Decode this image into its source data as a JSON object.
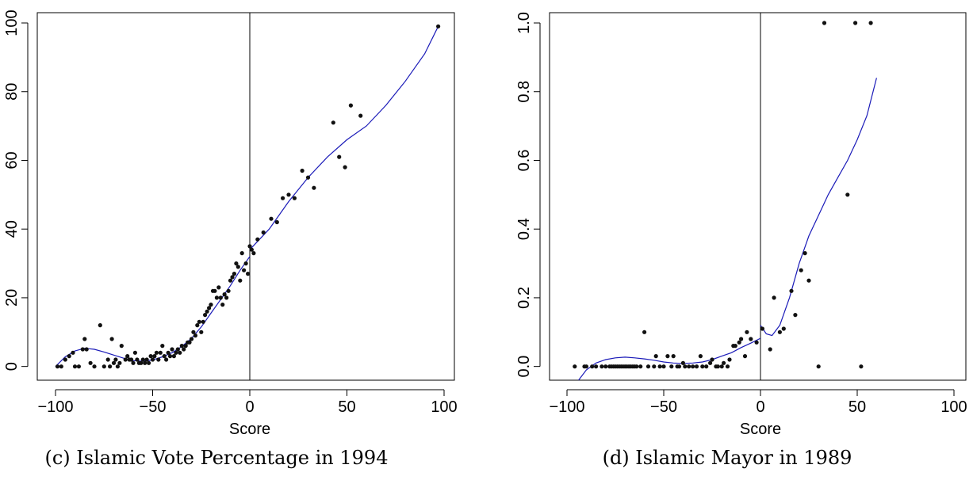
{
  "chart_data": [
    {
      "type": "scatter",
      "caption": "(c) Islamic Vote Percentage in 1994",
      "xlabel": "Score",
      "ylabel": "",
      "xlim": [
        -100,
        100
      ],
      "ylim": [
        -4,
        103
      ],
      "xticks": [
        "-100",
        "-50",
        "0",
        "50",
        "100"
      ],
      "yticks": [
        "0",
        "20",
        "40",
        "60",
        "80",
        "100"
      ],
      "cutoff": 0,
      "grid": false,
      "points": [
        [
          -99,
          0
        ],
        [
          -97,
          0
        ],
        [
          -95,
          2
        ],
        [
          -93,
          3
        ],
        [
          -91,
          4
        ],
        [
          -90,
          0
        ],
        [
          -88,
          0
        ],
        [
          -86,
          5
        ],
        [
          -85,
          8
        ],
        [
          -84,
          5
        ],
        [
          -82,
          1
        ],
        [
          -80,
          0
        ],
        [
          -77,
          12
        ],
        [
          -75,
          0
        ],
        [
          -73,
          2
        ],
        [
          -72,
          0
        ],
        [
          -71,
          8
        ],
        [
          -70,
          1
        ],
        [
          -69,
          2
        ],
        [
          -68,
          0
        ],
        [
          -67,
          1
        ],
        [
          -66,
          6
        ],
        [
          -64,
          2
        ],
        [
          -63,
          3
        ],
        [
          -62,
          2
        ],
        [
          -61,
          2
        ],
        [
          -60,
          1
        ],
        [
          -59,
          4
        ],
        [
          -58,
          2
        ],
        [
          -57,
          1
        ],
        [
          -56,
          1
        ],
        [
          -55,
          2
        ],
        [
          -54,
          1
        ],
        [
          -53,
          2
        ],
        [
          -52,
          1
        ],
        [
          -51,
          3
        ],
        [
          -50,
          2
        ],
        [
          -49,
          3
        ],
        [
          -48,
          4
        ],
        [
          -47,
          2
        ],
        [
          -46,
          4
        ],
        [
          -45,
          6
        ],
        [
          -44,
          3
        ],
        [
          -43,
          2
        ],
        [
          -42,
          4
        ],
        [
          -41,
          3
        ],
        [
          -40,
          5
        ],
        [
          -39,
          3
        ],
        [
          -38,
          4
        ],
        [
          -37,
          5
        ],
        [
          -36,
          4
        ],
        [
          -35,
          6
        ],
        [
          -34,
          5
        ],
        [
          -33,
          6
        ],
        [
          -32,
          7
        ],
        [
          -31,
          7
        ],
        [
          -30,
          8
        ],
        [
          -29,
          10
        ],
        [
          -28,
          9
        ],
        [
          -27,
          12
        ],
        [
          -26,
          13
        ],
        [
          -25,
          10
        ],
        [
          -24,
          13
        ],
        [
          -23,
          15
        ],
        [
          -22,
          16
        ],
        [
          -21,
          17
        ],
        [
          -20,
          18
        ],
        [
          -19,
          22
        ],
        [
          -18,
          22
        ],
        [
          -17,
          20
        ],
        [
          -16,
          23
        ],
        [
          -15,
          20
        ],
        [
          -14,
          18
        ],
        [
          -13,
          21
        ],
        [
          -12,
          20
        ],
        [
          -11,
          22
        ],
        [
          -10,
          25
        ],
        [
          -9,
          26
        ],
        [
          -8,
          27
        ],
        [
          -7,
          30
        ],
        [
          -6,
          29
        ],
        [
          -5,
          25
        ],
        [
          -4,
          33
        ],
        [
          -3,
          28
        ],
        [
          -2,
          30
        ],
        [
          -1,
          27
        ],
        [
          0,
          35
        ],
        [
          1,
          34
        ],
        [
          2,
          33
        ],
        [
          4,
          37
        ],
        [
          7,
          39
        ],
        [
          11,
          43
        ],
        [
          14,
          42
        ],
        [
          17,
          49
        ],
        [
          20,
          50
        ],
        [
          23,
          49
        ],
        [
          27,
          57
        ],
        [
          30,
          55
        ],
        [
          33,
          52
        ],
        [
          43,
          71
        ],
        [
          46,
          61
        ],
        [
          49,
          58
        ],
        [
          52,
          76
        ],
        [
          57,
          73
        ],
        [
          97,
          99
        ]
      ],
      "fit_left": [
        [
          -100,
          0
        ],
        [
          -95,
          2.8
        ],
        [
          -90,
          4.5
        ],
        [
          -85,
          5.3
        ],
        [
          -80,
          5.0
        ],
        [
          -75,
          4.2
        ],
        [
          -70,
          3.3
        ],
        [
          -65,
          2.4
        ],
        [
          -60,
          1.7
        ],
        [
          -55,
          1.5
        ],
        [
          -50,
          1.9
        ],
        [
          -45,
          2.8
        ],
        [
          -40,
          4.0
        ],
        [
          -35,
          5.8
        ],
        [
          -30,
          8.2
        ],
        [
          -25,
          11.5
        ],
        [
          -20,
          15.5
        ],
        [
          -15,
          19.5
        ],
        [
          -10,
          23.5
        ],
        [
          -5,
          28
        ],
        [
          0,
          32
        ]
      ],
      "fit_right": [
        [
          0,
          34
        ],
        [
          10,
          40
        ],
        [
          20,
          48
        ],
        [
          30,
          55
        ],
        [
          40,
          61
        ],
        [
          50,
          66
        ],
        [
          60,
          70
        ],
        [
          70,
          76
        ],
        [
          80,
          83
        ],
        [
          90,
          91
        ],
        [
          97,
          99
        ]
      ]
    },
    {
      "type": "scatter",
      "caption": "(d) Islamic Mayor in 1989",
      "xlabel": "Score",
      "ylabel": "",
      "xlim": [
        -100,
        100
      ],
      "ylim": [
        -0.04,
        1.03
      ],
      "xticks": [
        "-100",
        "-50",
        "0",
        "50",
        "100"
      ],
      "yticks": [
        "0.0",
        "0.2",
        "0.4",
        "0.6",
        "0.8",
        "1.0"
      ],
      "cutoff": 0,
      "grid": false,
      "points": [
        [
          -96,
          0
        ],
        [
          -91,
          0
        ],
        [
          -90,
          0
        ],
        [
          -87,
          0
        ],
        [
          -85,
          0
        ],
        [
          -82,
          0
        ],
        [
          -80,
          0
        ],
        [
          -78,
          0
        ],
        [
          -77,
          0
        ],
        [
          -76,
          0
        ],
        [
          -75,
          0
        ],
        [
          -74,
          0
        ],
        [
          -73,
          0
        ],
        [
          -72,
          0
        ],
        [
          -71,
          0
        ],
        [
          -70,
          0
        ],
        [
          -69,
          0
        ],
        [
          -68,
          0
        ],
        [
          -67,
          0
        ],
        [
          -66,
          0
        ],
        [
          -65,
          0
        ],
        [
          -64,
          0
        ],
        [
          -62,
          0
        ],
        [
          -60,
          0.1
        ],
        [
          -58,
          0
        ],
        [
          -55,
          0
        ],
        [
          -54,
          0.03
        ],
        [
          -52,
          0
        ],
        [
          -50,
          0
        ],
        [
          -48,
          0.03
        ],
        [
          -46,
          0
        ],
        [
          -45,
          0.03
        ],
        [
          -43,
          0
        ],
        [
          -42,
          0
        ],
        [
          -40,
          0.01
        ],
        [
          -39,
          0
        ],
        [
          -37,
          0
        ],
        [
          -35,
          0
        ],
        [
          -33,
          0
        ],
        [
          -31,
          0.03
        ],
        [
          -30,
          0
        ],
        [
          -28,
          0
        ],
        [
          -26,
          0.01
        ],
        [
          -25,
          0.02
        ],
        [
          -23,
          0
        ],
        [
          -22,
          0
        ],
        [
          -20,
          0
        ],
        [
          -19,
          0.01
        ],
        [
          -17,
          0
        ],
        [
          -16,
          0.02
        ],
        [
          -14,
          0.06
        ],
        [
          -13,
          0.06
        ],
        [
          -11,
          0.07
        ],
        [
          -10,
          0.08
        ],
        [
          -8,
          0.03
        ],
        [
          -7,
          0.1
        ],
        [
          -5,
          0.08
        ],
        [
          -2,
          0.07
        ],
        [
          1,
          0.11
        ],
        [
          5,
          0.05
        ],
        [
          7,
          0.2
        ],
        [
          10,
          0.1
        ],
        [
          12,
          0.11
        ],
        [
          16,
          0.22
        ],
        [
          18,
          0.15
        ],
        [
          21,
          0.28
        ],
        [
          23,
          0.33
        ],
        [
          25,
          0.25
        ],
        [
          30,
          0
        ],
        [
          33,
          1.0
        ],
        [
          45,
          0.5
        ],
        [
          49,
          1.0
        ],
        [
          52,
          0
        ],
        [
          57,
          1.0
        ]
      ],
      "fit_left": [
        [
          -94,
          -0.04
        ],
        [
          -90,
          -0.01
        ],
        [
          -85,
          0.01
        ],
        [
          -80,
          0.02
        ],
        [
          -75,
          0.025
        ],
        [
          -70,
          0.027
        ],
        [
          -65,
          0.025
        ],
        [
          -60,
          0.022
        ],
        [
          -55,
          0.018
        ],
        [
          -50,
          0.013
        ],
        [
          -45,
          0.01
        ],
        [
          -40,
          0.009
        ],
        [
          -35,
          0.01
        ],
        [
          -30,
          0.013
        ],
        [
          -25,
          0.02
        ],
        [
          -20,
          0.03
        ],
        [
          -15,
          0.04
        ],
        [
          -10,
          0.055
        ],
        [
          -5,
          0.068
        ],
        [
          0,
          0.082
        ]
      ],
      "fit_right": [
        [
          0,
          0.12
        ],
        [
          3,
          0.095
        ],
        [
          6,
          0.09
        ],
        [
          10,
          0.12
        ],
        [
          15,
          0.2
        ],
        [
          20,
          0.3
        ],
        [
          25,
          0.38
        ],
        [
          30,
          0.44
        ],
        [
          35,
          0.5
        ],
        [
          40,
          0.55
        ],
        [
          45,
          0.6
        ],
        [
          50,
          0.66
        ],
        [
          55,
          0.73
        ],
        [
          60,
          0.84
        ]
      ]
    }
  ]
}
